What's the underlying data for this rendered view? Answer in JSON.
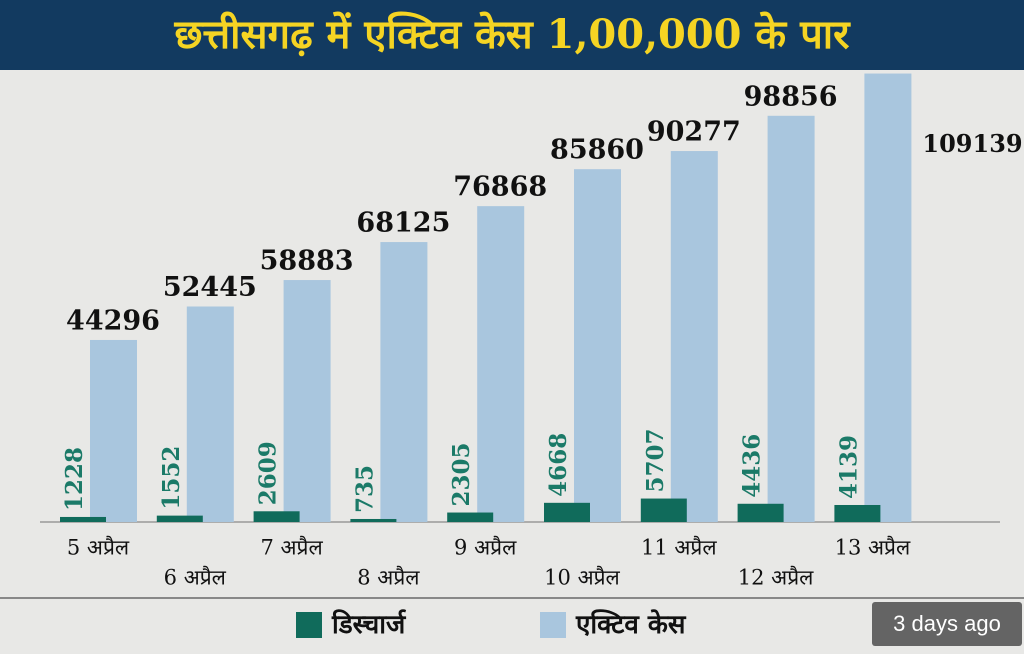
{
  "chart_data": {
    "type": "bar",
    "title": "छत्तीसगढ़ में एक्टिव केस 1,00,000 के पार",
    "categories": [
      "5 अप्रैल",
      "6 अप्रैल",
      "7 अप्रैल",
      "8 अप्रैल",
      "9 अप्रैल",
      "10 अप्रैल",
      "11 अप्रैल",
      "12 अप्रैल",
      "13 अप्रैल"
    ],
    "series": [
      {
        "name": "डिस्चार्ज",
        "color": "#106b5b",
        "values": [
          1228,
          1552,
          2609,
          735,
          2305,
          4668,
          5707,
          4436,
          4139
        ]
      },
      {
        "name": "एक्टिव केस",
        "color": "#a9c6de",
        "values": [
          44296,
          52445,
          58883,
          68125,
          76868,
          85860,
          90277,
          98856,
          109139
        ]
      }
    ],
    "ylim": [
      0,
      110000
    ]
  },
  "overlay": {
    "text": "3 days ago"
  }
}
